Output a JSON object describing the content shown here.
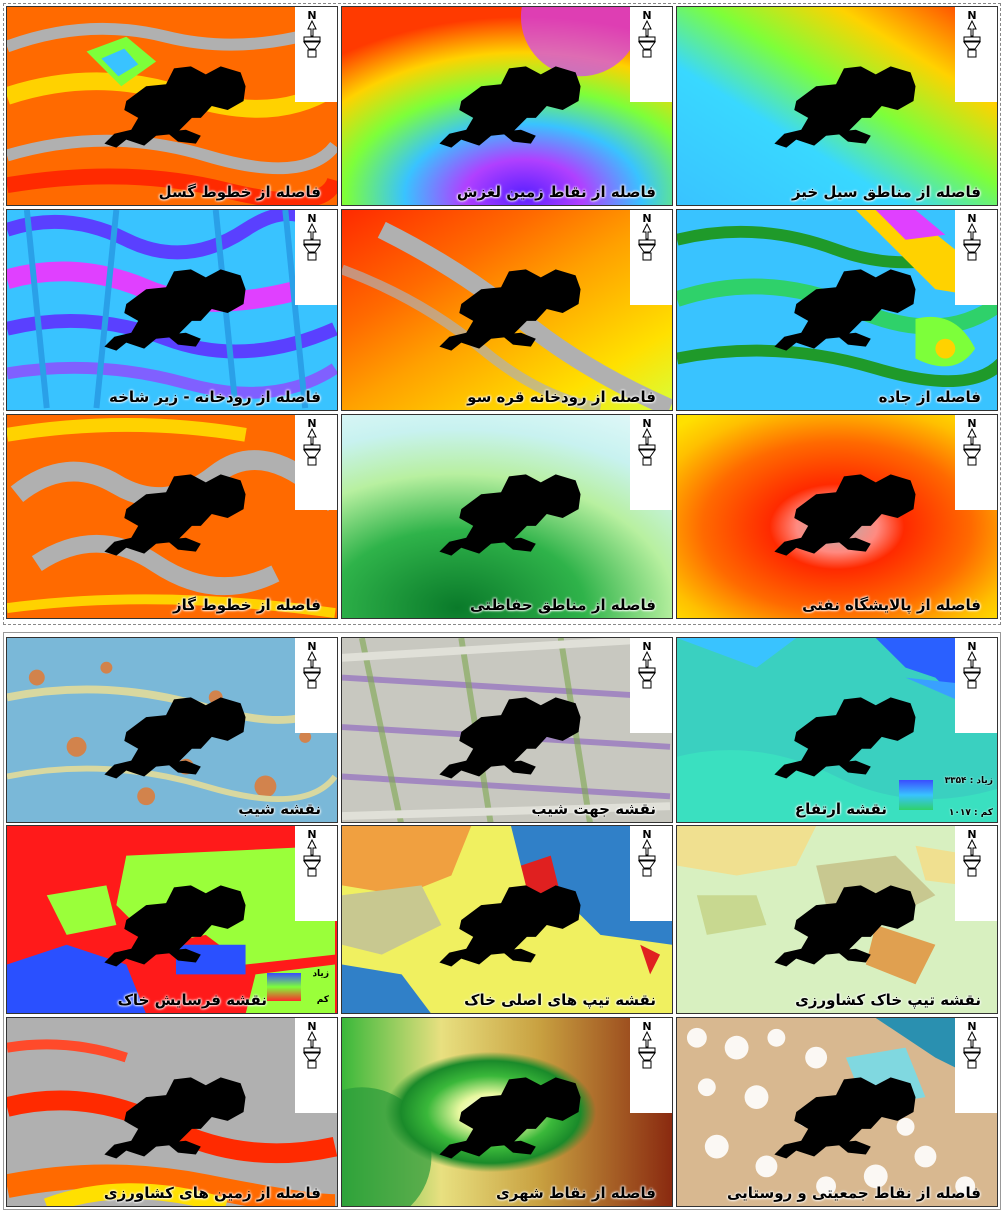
{
  "tiles": [
    {
      "caption": "فاصله از خطوط گسل",
      "palette": "fault"
    },
    {
      "caption": "فاصله از نقاط زمین لغزش",
      "palette": "landslide"
    },
    {
      "caption": "فاصله از مناطق سیل خیز",
      "palette": "flood"
    },
    {
      "caption": "فاصله از رودخانه - زیر شاخه",
      "palette": "river_branch"
    },
    {
      "caption": "فاصله از رودخانه قره سو",
      "palette": "river_main"
    },
    {
      "caption": "فاصله از جاده",
      "palette": "road"
    },
    {
      "caption": "فاصله از خطوط گاز",
      "palette": "gas"
    },
    {
      "caption": "فاصله از مناطق حفاظتی",
      "palette": "protected"
    },
    {
      "caption": "فاصله از پالایشگاه نفتی",
      "palette": "refinery"
    },
    {
      "caption": "نقشه شیب",
      "palette": "slope"
    },
    {
      "caption": "نقشه جهت شیب",
      "palette": "aspect"
    },
    {
      "caption": "نقشه ارتفاع",
      "palette": "elevation",
      "legend_high": "زیاد : ۳۳۵۴",
      "legend_low": "کم : ۱۰۱۷"
    },
    {
      "caption": "نقشه فرسایش خاک",
      "palette": "erosion",
      "legend_high": "زیاد",
      "legend_low": "کم"
    },
    {
      "caption": "نقشه تیپ های اصلی خاک",
      "palette": "soil_main"
    },
    {
      "caption": "نقشه تیپ خاک کشاورزی",
      "palette": "soil_agri"
    },
    {
      "caption": "فاصله از زمین های کشاورزی",
      "palette": "agri_land"
    },
    {
      "caption": "فاصله از نقاط شهری",
      "palette": "urban"
    },
    {
      "caption": "فاصله از نقاط جمعیتی و روستایی",
      "palette": "village"
    }
  ],
  "north_label": "N",
  "colors": {
    "study_area": "#000000",
    "frame": "#333333"
  }
}
